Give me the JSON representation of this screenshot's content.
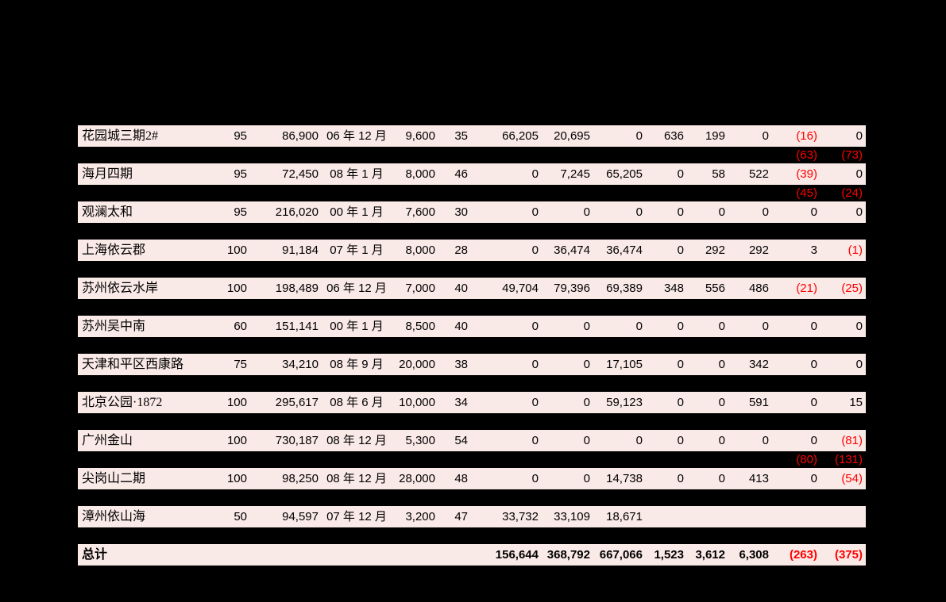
{
  "page": {
    "background_color": "#000000",
    "row_background_color": "#faeae7",
    "text_color": "#000000",
    "negative_value_color": "#fe0000"
  },
  "table": {
    "description": "project-data-table",
    "total_label": "总计",
    "rows": [
      {
        "type": "data",
        "cells": [
          "花园城三期2#",
          "95",
          "86,900",
          "06 年 12 月",
          "9,600",
          "35",
          "66,205",
          "20,695",
          "0",
          "636",
          "199",
          "0",
          "(16)",
          "0"
        ],
        "red": [
          12
        ]
      },
      {
        "type": "gap",
        "cells": [
          "",
          "",
          "",
          "",
          "",
          "",
          "",
          "",
          "",
          "",
          "",
          "",
          "(63)",
          "(73)"
        ],
        "red": [
          12,
          13
        ]
      },
      {
        "type": "data",
        "cells": [
          "海月四期",
          "95",
          "72,450",
          "08 年 1 月",
          "8,000",
          "46",
          "0",
          "7,245",
          "65,205",
          "0",
          "58",
          "522",
          "(39)",
          "0"
        ],
        "red": [
          12
        ]
      },
      {
        "type": "gap",
        "cells": [
          "",
          "",
          "",
          "",
          "",
          "",
          "",
          "",
          "",
          "",
          "",
          "",
          "(45)",
          "(24)"
        ],
        "red": [
          12,
          13
        ]
      },
      {
        "type": "data",
        "cells": [
          "观澜太和",
          "95",
          "216,020",
          "00 年 1 月",
          "7,600",
          "30",
          "0",
          "0",
          "0",
          "0",
          "0",
          "0",
          "0",
          "0"
        ],
        "red": []
      },
      {
        "type": "gap",
        "cells": [
          "",
          "",
          "",
          "",
          "",
          "",
          "",
          "",
          "",
          "",
          "",
          "",
          "",
          ""
        ],
        "red": []
      },
      {
        "type": "data",
        "cells": [
          "上海依云郡",
          "100",
          "91,184",
          "07 年 1 月",
          "8,000",
          "28",
          "0",
          "36,474",
          "36,474",
          "0",
          "292",
          "292",
          "3",
          "(1)"
        ],
        "red": [
          13
        ]
      },
      {
        "type": "gap",
        "cells": [
          "",
          "",
          "",
          "",
          "",
          "",
          "",
          "",
          "",
          "",
          "",
          "",
          "",
          ""
        ],
        "red": []
      },
      {
        "type": "data",
        "cells": [
          "苏州依云水岸",
          "100",
          "198,489",
          "06 年 12 月",
          "7,000",
          "40",
          "49,704",
          "79,396",
          "69,389",
          "348",
          "556",
          "486",
          "(21)",
          "(25)"
        ],
        "red": [
          12,
          13
        ]
      },
      {
        "type": "gap",
        "cells": [
          "",
          "",
          "",
          "",
          "",
          "",
          "",
          "",
          "",
          "",
          "",
          "",
          "",
          ""
        ],
        "red": []
      },
      {
        "type": "data",
        "cells": [
          "苏州吴中南",
          "60",
          "151,141",
          "00 年 1 月",
          "8,500",
          "40",
          "0",
          "0",
          "0",
          "0",
          "0",
          "0",
          "0",
          "0"
        ],
        "red": []
      },
      {
        "type": "gap",
        "cells": [
          "",
          "",
          "",
          "",
          "",
          "",
          "",
          "",
          "",
          "",
          "",
          "",
          "",
          ""
        ],
        "red": []
      },
      {
        "type": "data",
        "cells": [
          "天津和平区西康路",
          "75",
          "34,210",
          "08 年 9 月",
          "20,000",
          "38",
          "0",
          "0",
          "17,105",
          "0",
          "0",
          "342",
          "0",
          "0"
        ],
        "red": []
      },
      {
        "type": "gap",
        "cells": [
          "",
          "",
          "",
          "",
          "",
          "",
          "",
          "",
          "",
          "",
          "",
          "",
          "",
          ""
        ],
        "red": []
      },
      {
        "type": "data",
        "cells": [
          "北京公园·1872",
          "100",
          "295,617",
          "08 年 6 月",
          "10,000",
          "34",
          "0",
          "0",
          "59,123",
          "0",
          "0",
          "591",
          "0",
          "15"
        ],
        "red": []
      },
      {
        "type": "gap",
        "cells": [
          "",
          "",
          "",
          "",
          "",
          "",
          "",
          "",
          "",
          "",
          "",
          "",
          "",
          ""
        ],
        "red": []
      },
      {
        "type": "data",
        "cells": [
          "广州金山",
          "100",
          "730,187",
          "08 年 12 月",
          "5,300",
          "54",
          "0",
          "0",
          "0",
          "0",
          "0",
          "0",
          "0",
          "(81)"
        ],
        "red": [
          13
        ]
      },
      {
        "type": "gap",
        "cells": [
          "",
          "",
          "",
          "",
          "",
          "",
          "",
          "",
          "",
          "",
          "",
          "",
          "(80)",
          "(131)"
        ],
        "red": [
          12,
          13
        ]
      },
      {
        "type": "data",
        "cells": [
          "尖岗山二期",
          "100",
          "98,250",
          "08 年 12 月",
          "28,000",
          "48",
          "0",
          "0",
          "14,738",
          "0",
          "0",
          "413",
          "0",
          "(54)"
        ],
        "red": [
          13
        ]
      },
      {
        "type": "gap",
        "cells": [
          "",
          "",
          "",
          "",
          "",
          "",
          "",
          "",
          "",
          "",
          "",
          "",
          "",
          ""
        ],
        "red": []
      },
      {
        "type": "data",
        "cells": [
          "漳州依山海",
          "50",
          "94,597",
          "07 年 12 月",
          "3,200",
          "47",
          "33,732",
          "33,109",
          "18,671",
          "",
          "",
          "",
          "",
          ""
        ],
        "red": []
      },
      {
        "type": "gap",
        "cells": [
          "",
          "",
          "",
          "",
          "",
          "",
          "",
          "",
          "",
          "",
          "",
          "",
          "",
          ""
        ],
        "red": []
      },
      {
        "type": "total",
        "cells": [
          "总计",
          "",
          "",
          "",
          "",
          "",
          "156,644",
          "368,792",
          "667,066",
          "1,523",
          "3,612",
          "6,308",
          "(263)",
          "(375)"
        ],
        "red": [
          12,
          13
        ]
      }
    ]
  }
}
